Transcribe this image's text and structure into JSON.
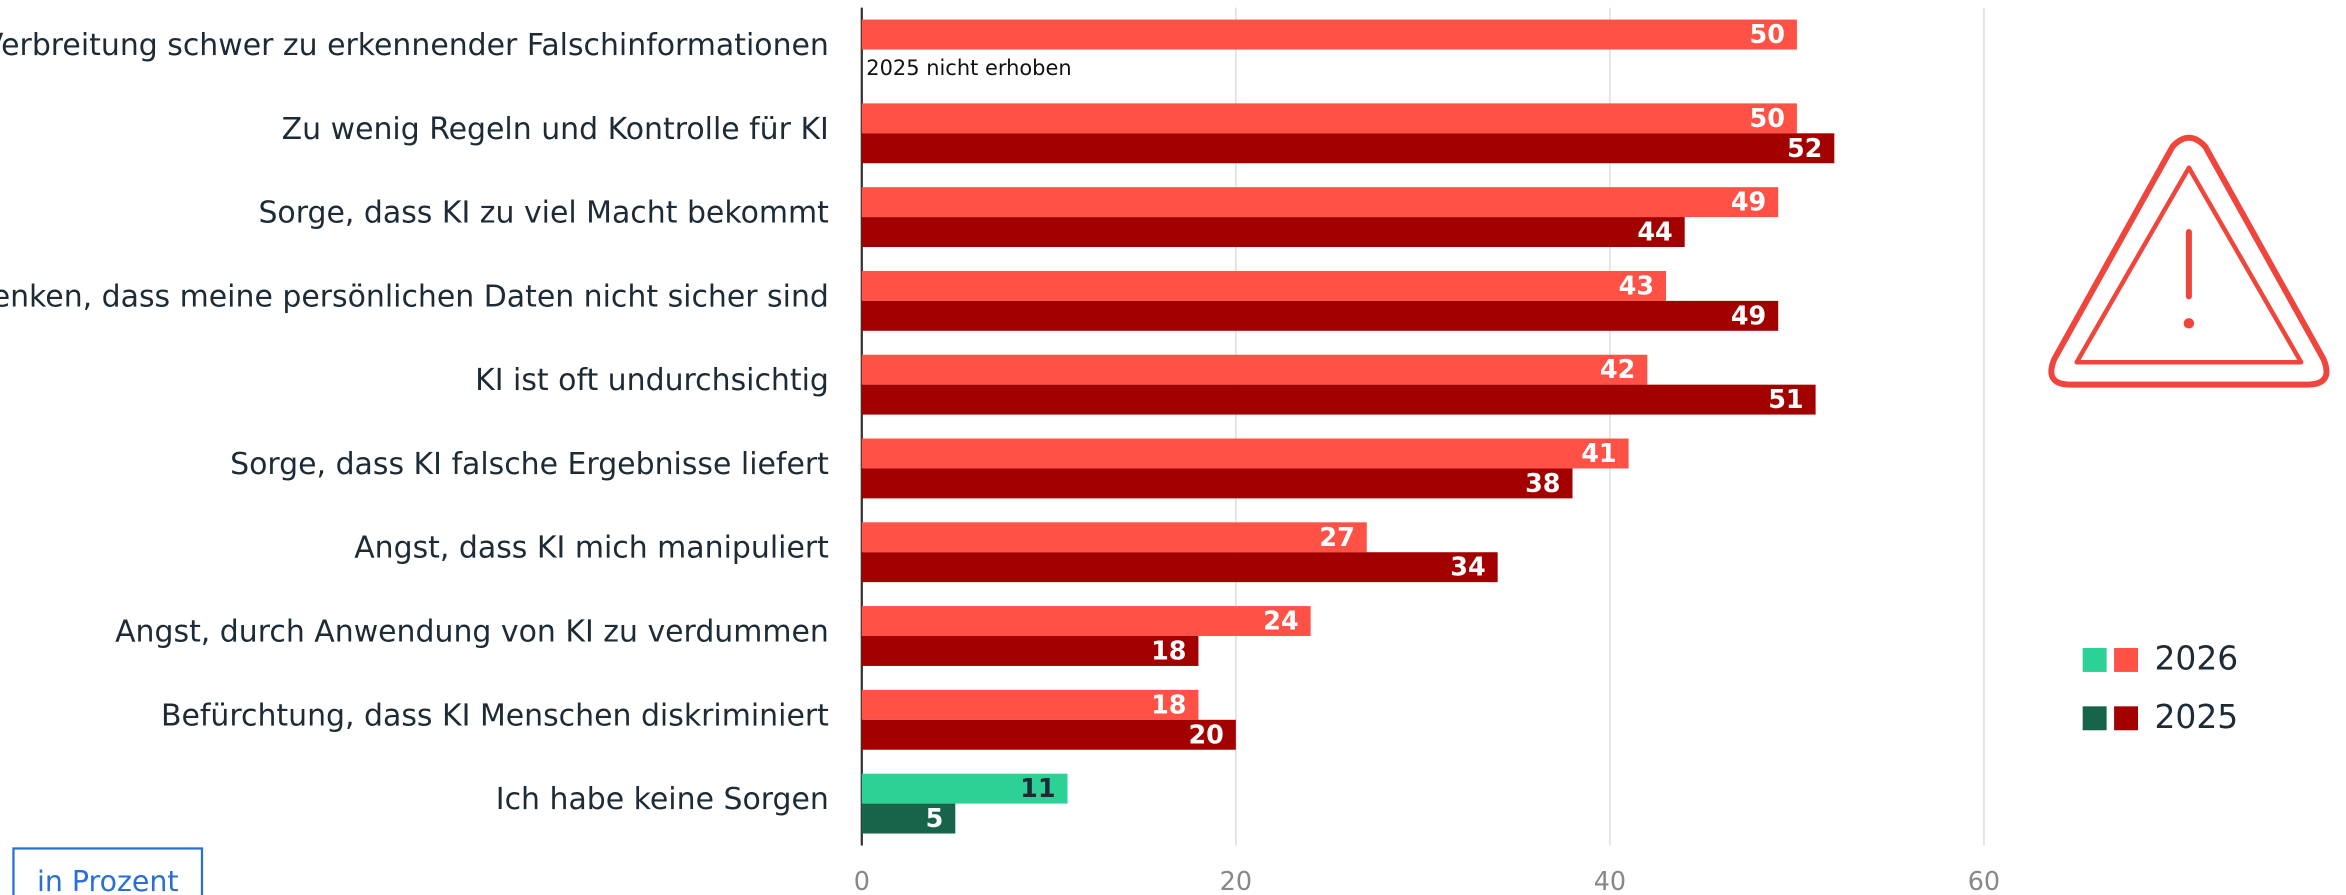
{
  "chart_data": {
    "type": "bar",
    "orientation": "horizontal",
    "categories": [
      "Verbreitung schwer zu erkennender Falschinformationen",
      "Zu wenig Regeln und Kontrolle für KI",
      "Sorge, dass KI zu viel Macht bekommt",
      "Bedenken, dass meine persönlichen Daten nicht sicher sind",
      "KI ist oft undurchsichtig",
      "Sorge, dass KI falsche Ergebnisse liefert",
      "Angst, dass KI mich manipuliert",
      "Angst, durch Anwendung von KI zu verdummen",
      "Befürchtung, dass KI Menschen diskriminiert",
      "Ich habe keine Sorgen"
    ],
    "series": [
      {
        "name": "2026",
        "colors": [
          "#ff5145",
          "#ff5145",
          "#ff5145",
          "#ff5145",
          "#ff5145",
          "#ff5145",
          "#ff5145",
          "#ff5145",
          "#ff5145",
          "#2bd195"
        ],
        "values": [
          50,
          50,
          49,
          43,
          42,
          41,
          27,
          24,
          18,
          11
        ]
      },
      {
        "name": "2025",
        "colors": [
          "#a30000",
          "#a30000",
          "#a30000",
          "#a30000",
          "#a30000",
          "#a30000",
          "#a30000",
          "#a30000",
          "#a30000",
          "#17644a"
        ],
        "values": [
          null,
          52,
          44,
          49,
          51,
          38,
          34,
          18,
          20,
          5
        ]
      }
    ],
    "annotation": "2025 nicht erhoben",
    "unit_note": "in Prozent",
    "xlim": [
      0,
      80
    ],
    "xticks": [
      0,
      20,
      40,
      60
    ],
    "grid": true,
    "legend": "right"
  }
}
